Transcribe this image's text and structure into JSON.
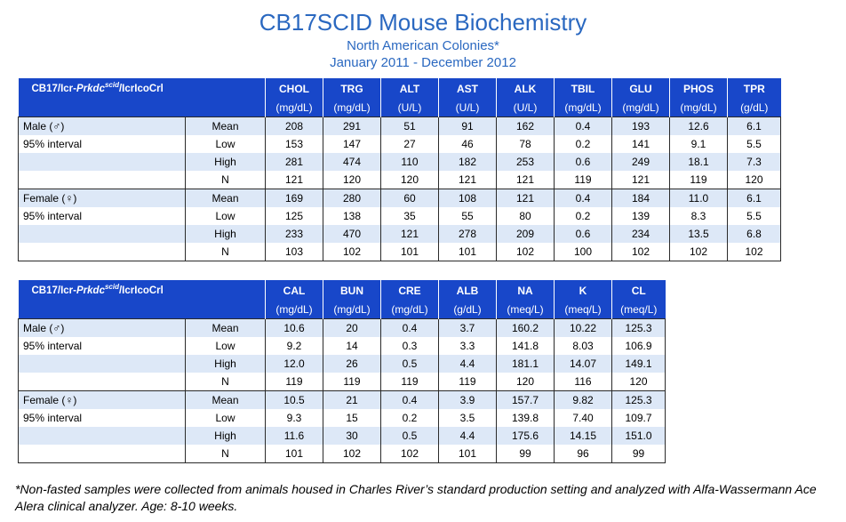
{
  "header": {
    "title": "CB17SCID Mouse Biochemistry",
    "subtitle": "North American Colonies*",
    "date_range": "January 2011 - December 2012"
  },
  "strain": {
    "prefix": "CB17/Icr-",
    "gene": "Prkdc",
    "superscript": "scid",
    "suffix": "/IcrIcoCrl"
  },
  "tables": [
    {
      "columns": [
        {
          "name": "CHOL",
          "unit": "(mg/dL)"
        },
        {
          "name": "TRG",
          "unit": "(mg/dL)"
        },
        {
          "name": "ALT",
          "unit": "(U/L)"
        },
        {
          "name": "AST",
          "unit": "(U/L)"
        },
        {
          "name": "ALK",
          "unit": "(U/L)"
        },
        {
          "name": "TBIL",
          "unit": "(mg/dL)"
        },
        {
          "name": "GLU",
          "unit": "(mg/dL)"
        },
        {
          "name": "PHOS",
          "unit": "(mg/dL)"
        },
        {
          "name": "TPR",
          "unit": "(g/dL)"
        }
      ],
      "groups": [
        {
          "sex": "Male (♂)",
          "interval": "95% interval",
          "rows": [
            {
              "stat": "Mean",
              "values": [
                "208",
                "291",
                "51",
                "91",
                "162",
                "0.4",
                "193",
                "12.6",
                "6.1"
              ]
            },
            {
              "stat": "Low",
              "values": [
                "153",
                "147",
                "27",
                "46",
                "78",
                "0.2",
                "141",
                "9.1",
                "5.5"
              ]
            },
            {
              "stat": "High",
              "values": [
                "281",
                "474",
                "110",
                "182",
                "253",
                "0.6",
                "249",
                "18.1",
                "7.3"
              ]
            },
            {
              "stat": "N",
              "values": [
                "121",
                "120",
                "120",
                "121",
                "121",
                "119",
                "121",
                "119",
                "120"
              ]
            }
          ]
        },
        {
          "sex": "Female (♀)",
          "interval": "95% interval",
          "rows": [
            {
              "stat": "Mean",
              "values": [
                "169",
                "280",
                "60",
                "108",
                "121",
                "0.4",
                "184",
                "11.0",
                "6.1"
              ]
            },
            {
              "stat": "Low",
              "values": [
                "125",
                "138",
                "35",
                "55",
                "80",
                "0.2",
                "139",
                "8.3",
                "5.5"
              ]
            },
            {
              "stat": "High",
              "values": [
                "233",
                "470",
                "121",
                "278",
                "209",
                "0.6",
                "234",
                "13.5",
                "6.8"
              ]
            },
            {
              "stat": "N",
              "values": [
                "103",
                "102",
                "101",
                "101",
                "102",
                "100",
                "102",
                "102",
                "102"
              ]
            }
          ]
        }
      ]
    },
    {
      "columns": [
        {
          "name": "CAL",
          "unit": "(mg/dL)"
        },
        {
          "name": "BUN",
          "unit": "(mg/dL)"
        },
        {
          "name": "CRE",
          "unit": "(mg/dL)"
        },
        {
          "name": "ALB",
          "unit": "(g/dL)"
        },
        {
          "name": "NA",
          "unit": "(meq/L)"
        },
        {
          "name": "K",
          "unit": "(meq/L)"
        },
        {
          "name": "CL",
          "unit": "(meq/L)"
        }
      ],
      "groups": [
        {
          "sex": "Male (♂)",
          "interval": "95% interval",
          "rows": [
            {
              "stat": "Mean",
              "values": [
                "10.6",
                "20",
                "0.4",
                "3.7",
                "160.2",
                "10.22",
                "125.3"
              ]
            },
            {
              "stat": "Low",
              "values": [
                "9.2",
                "14",
                "0.3",
                "3.3",
                "141.8",
                "8.03",
                "106.9"
              ]
            },
            {
              "stat": "High",
              "values": [
                "12.0",
                "26",
                "0.5",
                "4.4",
                "181.1",
                "14.07",
                "149.1"
              ]
            },
            {
              "stat": "N",
              "values": [
                "119",
                "119",
                "119",
                "119",
                "120",
                "116",
                "120"
              ]
            }
          ]
        },
        {
          "sex": "Female (♀)",
          "interval": "95% interval",
          "rows": [
            {
              "stat": "Mean",
              "values": [
                "10.5",
                "21",
                "0.4",
                "3.9",
                "157.7",
                "9.82",
                "125.3"
              ]
            },
            {
              "stat": "Low",
              "values": [
                "9.3",
                "15",
                "0.2",
                "3.5",
                "139.8",
                "7.40",
                "109.7"
              ]
            },
            {
              "stat": "High",
              "values": [
                "11.6",
                "30",
                "0.5",
                "4.4",
                "175.6",
                "14.15",
                "151.0"
              ]
            },
            {
              "stat": "N",
              "values": [
                "101",
                "102",
                "102",
                "101",
                "99",
                "96",
                "99"
              ]
            }
          ]
        }
      ]
    }
  ],
  "footnote": "*Non-fasted samples were collected from animals housed in Charles River’s standard production setting and analyzed with Alfa-Wassermann Ace Alera clinical analyzer. Age: 8-10 weeks."
}
